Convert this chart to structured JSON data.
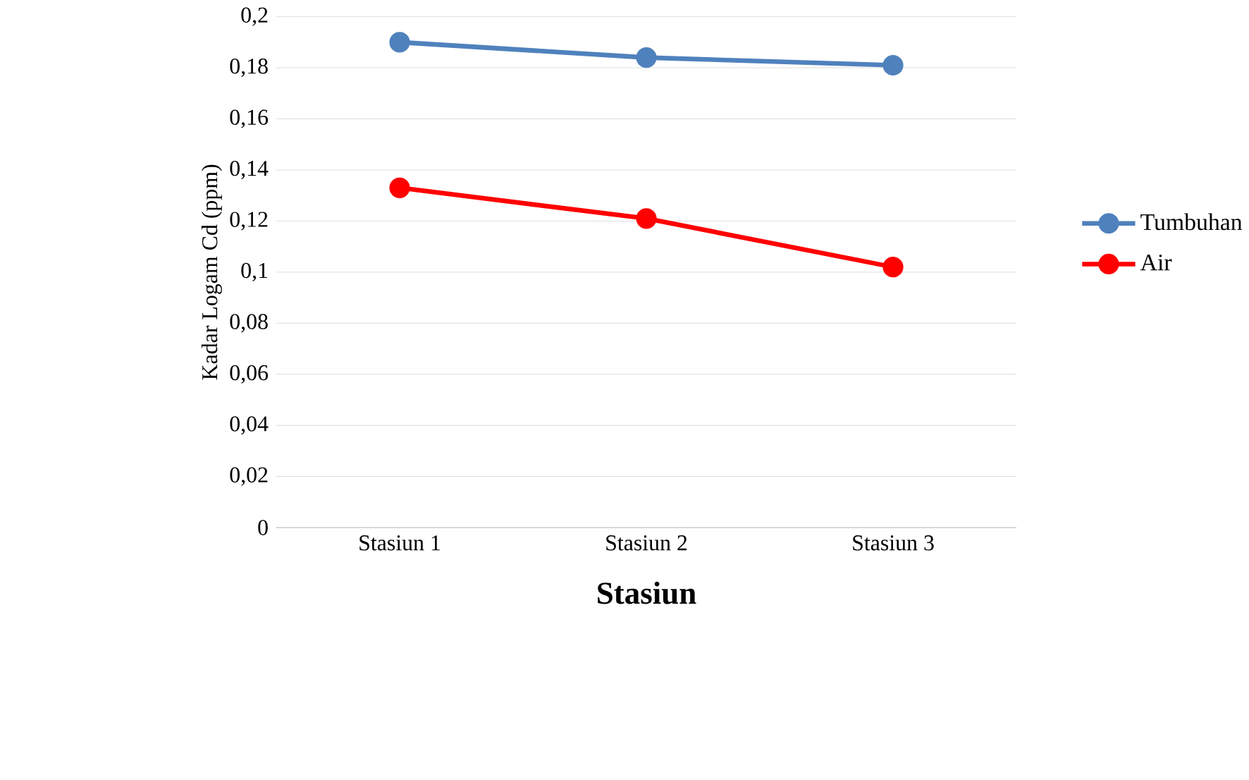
{
  "chart_data": {
    "type": "line",
    "xlabel": "Stasiun",
    "ylabel": "Kadar Logam Cd (ppm)",
    "categories": [
      "Stasiun 1",
      "Stasiun 2",
      "Stasiun 3"
    ],
    "series": [
      {
        "name": "Tumbuhan",
        "color": "#4f81bd",
        "values": [
          0.19,
          0.184,
          0.181
        ]
      },
      {
        "name": "Air",
        "color": "#ff0000",
        "values": [
          0.133,
          0.121,
          0.102
        ]
      }
    ],
    "ylim": [
      0,
      0.2
    ],
    "yticks": [
      0,
      {
        "value": 0.02,
        "label": "0,02"
      },
      {
        "value": 0.04,
        "label": "0,04"
      },
      {
        "value": 0.06,
        "label": "0,06"
      },
      {
        "value": 0.08,
        "label": "0,08"
      },
      {
        "value": 0.1,
        "label": "0,1"
      },
      {
        "value": 0.12,
        "label": "0,12"
      },
      {
        "value": 0.14,
        "label": "0,14"
      },
      {
        "value": 0.16,
        "label": "0,16"
      },
      {
        "value": 0.18,
        "label": "0,18"
      },
      {
        "value": 0.2,
        "label": "0,2"
      }
    ],
    "grid": "y",
    "legend": "right",
    "marker": "circle",
    "line_style": "solid"
  }
}
